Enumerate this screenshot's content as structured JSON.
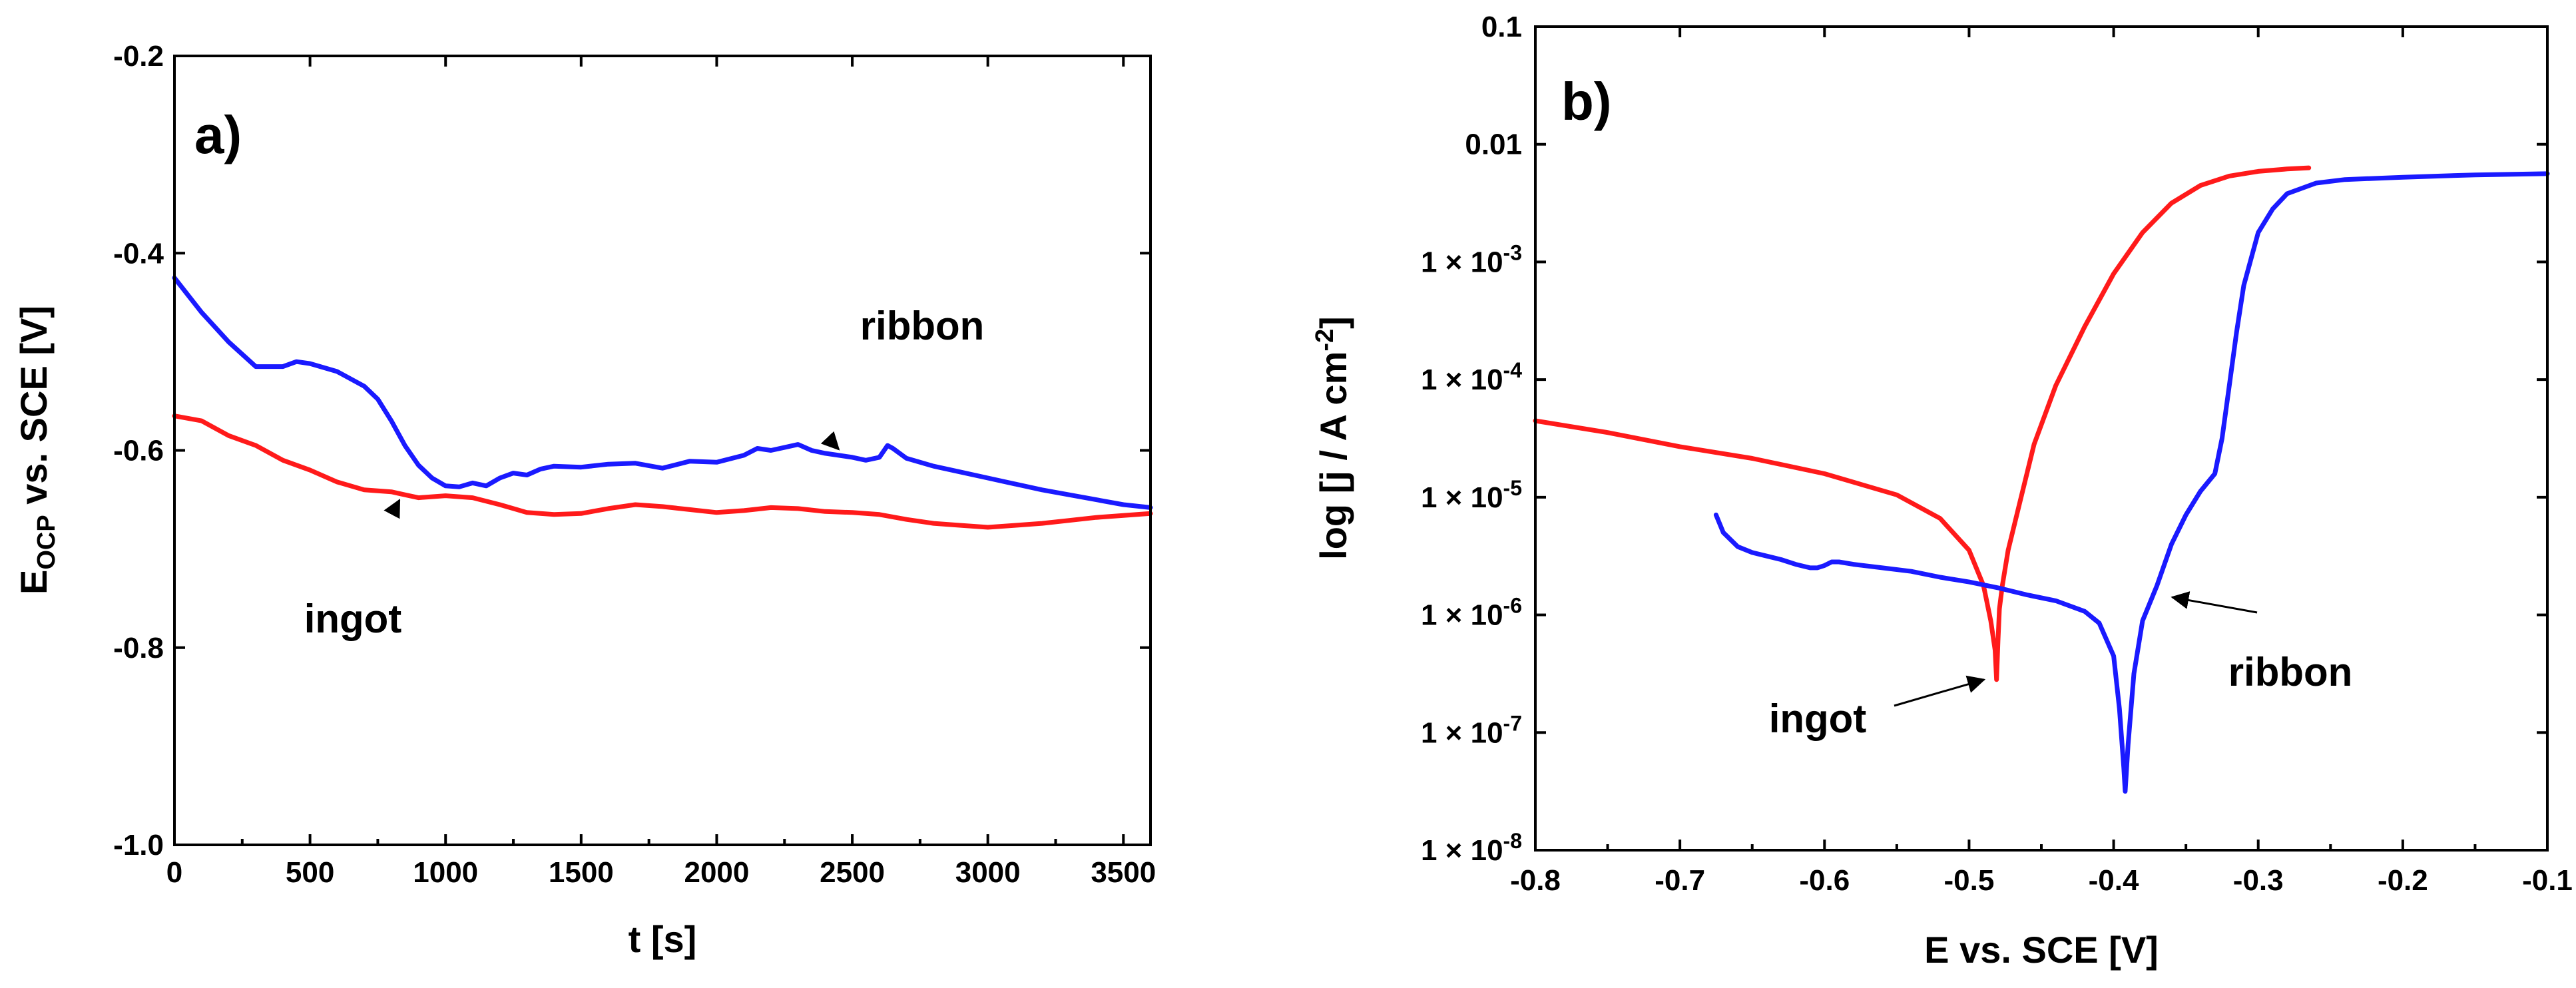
{
  "chart_data": [
    {
      "panel": "a)",
      "type": "line",
      "xlabel": "t [s]",
      "ylabel_main": "E",
      "ylabel_sub": "OCP",
      "ylabel_rest": " vs. SCE [V]",
      "xlim": [
        0,
        3600
      ],
      "ylim": [
        -1.0,
        -0.2
      ],
      "xticks": [
        0,
        500,
        1000,
        1500,
        2000,
        2500,
        3000,
        3500
      ],
      "xtick_labels": [
        "0",
        "500",
        "1000",
        "1500",
        "2000",
        "2500",
        "3000",
        "3500"
      ],
      "yticks": [
        -1.0,
        -0.8,
        -0.6,
        -0.4,
        -0.2
      ],
      "ytick_labels": [
        "-1.0",
        "-0.8",
        "-0.6",
        "-0.4",
        "-0.2"
      ],
      "series": [
        {
          "name": "ribbon",
          "color": "#1a1aff",
          "x": [
            0,
            100,
            200,
            300,
            400,
            450,
            500,
            600,
            700,
            750,
            800,
            850,
            900,
            950,
            1000,
            1050,
            1100,
            1150,
            1200,
            1250,
            1300,
            1350,
            1400,
            1500,
            1600,
            1700,
            1800,
            1900,
            2000,
            2100,
            2150,
            2200,
            2250,
            2300,
            2350,
            2400,
            2450,
            2500,
            2550,
            2600,
            2630,
            2650,
            2700,
            2800,
            2900,
            3000,
            3100,
            3200,
            3300,
            3400,
            3500,
            3600
          ],
          "y": [
            -0.425,
            -0.46,
            -0.49,
            -0.515,
            -0.515,
            -0.51,
            -0.512,
            -0.52,
            -0.535,
            -0.548,
            -0.57,
            -0.595,
            -0.615,
            -0.628,
            -0.636,
            -0.637,
            -0.633,
            -0.636,
            -0.628,
            -0.623,
            -0.625,
            -0.619,
            -0.616,
            -0.617,
            -0.614,
            -0.613,
            -0.618,
            -0.611,
            -0.612,
            -0.605,
            -0.598,
            -0.6,
            -0.597,
            -0.594,
            -0.6,
            -0.603,
            -0.605,
            -0.607,
            -0.61,
            -0.607,
            -0.595,
            -0.598,
            -0.608,
            -0.616,
            -0.622,
            -0.628,
            -0.634,
            -0.64,
            -0.645,
            -0.65,
            -0.655,
            -0.658
          ]
        },
        {
          "name": "ingot",
          "color": "#ff1a1a",
          "x": [
            0,
            100,
            200,
            300,
            400,
            500,
            600,
            700,
            800,
            850,
            900,
            1000,
            1100,
            1200,
            1300,
            1400,
            1500,
            1600,
            1700,
            1800,
            1900,
            2000,
            2100,
            2200,
            2300,
            2400,
            2500,
            2600,
            2700,
            2800,
            2900,
            3000,
            3100,
            3200,
            3300,
            3400,
            3500,
            3600
          ],
          "y": [
            -0.565,
            -0.57,
            -0.585,
            -0.595,
            -0.61,
            -0.62,
            -0.632,
            -0.64,
            -0.642,
            -0.645,
            -0.648,
            -0.646,
            -0.648,
            -0.655,
            -0.663,
            -0.665,
            -0.664,
            -0.659,
            -0.655,
            -0.657,
            -0.66,
            -0.663,
            -0.661,
            -0.658,
            -0.659,
            -0.662,
            -0.663,
            -0.665,
            -0.67,
            -0.674,
            -0.676,
            -0.678,
            -0.676,
            -0.674,
            -0.671,
            -0.668,
            -0.666,
            -0.664
          ]
        }
      ],
      "annotations": [
        {
          "text": "ribbon",
          "series": "ribbon",
          "target_x": 2450,
          "target_y": -0.603
        },
        {
          "text": "ingot",
          "series": "ingot",
          "target_x": 830,
          "target_y": -0.645
        }
      ]
    },
    {
      "panel": "b)",
      "type": "line",
      "y_scale": "log",
      "xlabel": "E vs. SCE [V]",
      "ylabel_main": "log [j / A cm",
      "ylabel_sup": "-2",
      "ylabel_end": "]",
      "xlim": [
        -0.8,
        -0.1
      ],
      "ylim_log10": [
        -8,
        -1
      ],
      "xticks": [
        -0.8,
        -0.7,
        -0.6,
        -0.5,
        -0.4,
        -0.3,
        -0.2,
        -0.1
      ],
      "xtick_labels": [
        "-0.8",
        "-0.7",
        "-0.6",
        "-0.5",
        "-0.4",
        "-0.3",
        "-0.2",
        "-0.1"
      ],
      "yticks_log10": [
        -8,
        -7,
        -6,
        -5,
        -4,
        -3,
        -2,
        -1
      ],
      "ytick_labels": [
        {
          "base": "1 × 10",
          "exp": "-8"
        },
        {
          "base": "1 × 10",
          "exp": "-7"
        },
        {
          "base": "1 × 10",
          "exp": "-6"
        },
        {
          "base": "1 × 10",
          "exp": "-5"
        },
        {
          "base": "1 × 10",
          "exp": "-4"
        },
        {
          "base": "1 × 10",
          "exp": "-3"
        },
        {
          "base": "0.01",
          "exp": ""
        },
        {
          "base": "0.1",
          "exp": ""
        }
      ],
      "series": [
        {
          "name": "ingot",
          "color": "#ff1a1a",
          "x": [
            -0.8,
            -0.75,
            -0.7,
            -0.65,
            -0.6,
            -0.55,
            -0.52,
            -0.5,
            -0.49,
            -0.485,
            -0.482,
            -0.481,
            -0.48,
            -0.479,
            -0.477,
            -0.473,
            -0.465,
            -0.455,
            -0.44,
            -0.42,
            -0.4,
            -0.38,
            -0.36,
            -0.34,
            -0.32,
            -0.3,
            -0.28,
            -0.265
          ],
          "log_j": [
            -4.35,
            -4.45,
            -4.57,
            -4.67,
            -4.8,
            -4.98,
            -5.18,
            -5.45,
            -5.75,
            -6.05,
            -6.3,
            -6.55,
            -6.22,
            -5.95,
            -5.75,
            -5.45,
            -5.05,
            -4.55,
            -4.05,
            -3.55,
            -3.1,
            -2.75,
            -2.5,
            -2.35,
            -2.27,
            -2.23,
            -2.21,
            -2.2
          ]
        },
        {
          "name": "ribbon",
          "color": "#1a1aff",
          "x": [
            -0.675,
            -0.67,
            -0.66,
            -0.65,
            -0.64,
            -0.63,
            -0.62,
            -0.61,
            -0.605,
            -0.6,
            -0.595,
            -0.59,
            -0.58,
            -0.56,
            -0.54,
            -0.52,
            -0.5,
            -0.48,
            -0.46,
            -0.44,
            -0.42,
            -0.41,
            -0.4,
            -0.396,
            -0.393,
            -0.392,
            -0.39,
            -0.386,
            -0.38,
            -0.37,
            -0.36,
            -0.35,
            -0.34,
            -0.33,
            -0.325,
            -0.32,
            -0.315,
            -0.31,
            -0.3,
            -0.29,
            -0.28,
            -0.26,
            -0.24,
            -0.2,
            -0.15,
            -0.1
          ],
          "log_j": [
            -5.15,
            -5.3,
            -5.42,
            -5.47,
            -5.5,
            -5.53,
            -5.57,
            -5.6,
            -5.6,
            -5.58,
            -5.55,
            -5.55,
            -5.57,
            -5.6,
            -5.63,
            -5.68,
            -5.72,
            -5.77,
            -5.83,
            -5.88,
            -5.97,
            -6.07,
            -6.35,
            -6.8,
            -7.3,
            -7.5,
            -7.1,
            -6.5,
            -6.05,
            -5.75,
            -5.4,
            -5.15,
            -4.95,
            -4.8,
            -4.5,
            -4.05,
            -3.6,
            -3.2,
            -2.75,
            -2.55,
            -2.42,
            -2.33,
            -2.3,
            -2.28,
            -2.26,
            -2.25
          ]
        }
      ],
      "annotations": [
        {
          "text": "ingot",
          "series": "ingot",
          "target_x": -0.485,
          "target_log_j": -6.55
        },
        {
          "text": "ribbon",
          "series": "ribbon",
          "target_x": -0.365,
          "target_log_j": -5.85
        }
      ]
    }
  ]
}
